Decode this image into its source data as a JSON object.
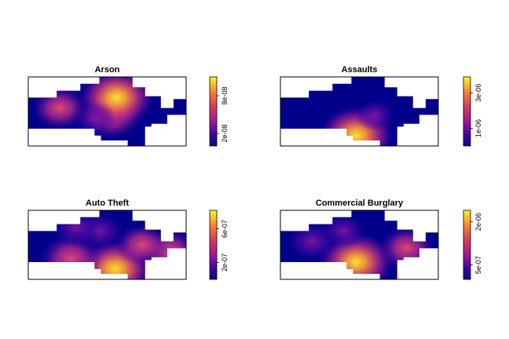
{
  "chart_data": [
    {
      "type": "heatmap",
      "title": "Arson",
      "colorbar": {
        "ticks": [
          "2e-08",
          "8e-08"
        ],
        "range": [
          0,
          1.1e-07
        ]
      },
      "hotspots": [
        {
          "x": 0.2,
          "y": 0.45,
          "value": 0.55
        },
        {
          "x": 0.53,
          "y": 0.55,
          "value": 0.7
        },
        {
          "x": 0.56,
          "y": 0.3,
          "value": 1.0
        },
        {
          "x": 0.42,
          "y": 0.6,
          "value": 0.25
        }
      ]
    },
    {
      "type": "heatmap",
      "title": "Assaults",
      "colorbar": {
        "ticks": [
          "1e-06",
          "3e-06"
        ],
        "range": [
          0,
          3.9e-06
        ]
      },
      "hotspots": [
        {
          "x": 0.48,
          "y": 0.85,
          "value": 1.0
        },
        {
          "x": 0.6,
          "y": 0.55,
          "value": 0.2
        }
      ]
    },
    {
      "type": "heatmap",
      "title": "Auto Theft",
      "colorbar": {
        "ticks": [
          "2e-07",
          "6e-07"
        ],
        "range": [
          0,
          8.2e-07
        ]
      },
      "hotspots": [
        {
          "x": 0.55,
          "y": 0.85,
          "value": 1.0
        },
        {
          "x": 0.27,
          "y": 0.7,
          "value": 0.7
        },
        {
          "x": 0.9,
          "y": 0.6,
          "value": 0.6
        },
        {
          "x": 0.45,
          "y": 0.3,
          "value": 0.4
        },
        {
          "x": 0.72,
          "y": 0.5,
          "value": 0.5
        },
        {
          "x": 0.3,
          "y": 0.25,
          "value": 0.35
        }
      ]
    },
    {
      "type": "heatmap",
      "title": "Commercial Burglary",
      "colorbar": {
        "ticks": [
          "5e-07",
          "2e-06"
        ],
        "range": [
          0,
          2.4e-06
        ]
      },
      "hotspots": [
        {
          "x": 0.48,
          "y": 0.75,
          "value": 1.0
        },
        {
          "x": 0.8,
          "y": 0.55,
          "value": 0.55
        },
        {
          "x": 0.2,
          "y": 0.45,
          "value": 0.45
        },
        {
          "x": 0.4,
          "y": 0.3,
          "value": 0.3
        }
      ]
    }
  ],
  "colormap": [
    "#0d0887",
    "#1a008f",
    "#5a00a8",
    "#9c179e",
    "#d03a7d",
    "#ef5a5a",
    "#fb9b4a",
    "#fcd41d",
    "#f5f52a"
  ],
  "background": "#00008b"
}
